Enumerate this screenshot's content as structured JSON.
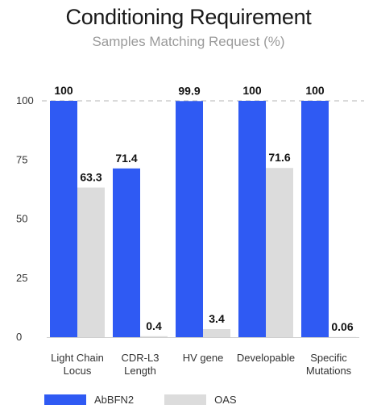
{
  "chart_data": {
    "type": "bar",
    "title": "Conditioning Requirement",
    "subtitle": "Samples Matching Request (%)",
    "categories": [
      [
        "Light Chain",
        "Locus"
      ],
      [
        "CDR-L3",
        "Length"
      ],
      [
        "HV gene"
      ],
      [
        "Developable"
      ],
      [
        "Specific",
        "Mutations"
      ]
    ],
    "series": [
      {
        "name": "AbBFN2",
        "color": "#2f5af3",
        "values": [
          100,
          71.4,
          99.9,
          100,
          100
        ],
        "labels": [
          "100",
          "71.4",
          "99.9",
          "100",
          "100"
        ]
      },
      {
        "name": "OAS",
        "color": "#dcdcdc",
        "values": [
          63.3,
          0.4,
          3.4,
          71.6,
          0.06
        ],
        "labels": [
          "63.3",
          "0.4",
          "3.4",
          "71.6",
          "0.06"
        ]
      }
    ],
    "yticks": [
      "0",
      "25",
      "50",
      "75",
      "100"
    ],
    "ylim": [
      0,
      100
    ],
    "xlabel": "",
    "ylabel": "",
    "grid": "dashed line at 100",
    "legend": "bottom-left"
  }
}
